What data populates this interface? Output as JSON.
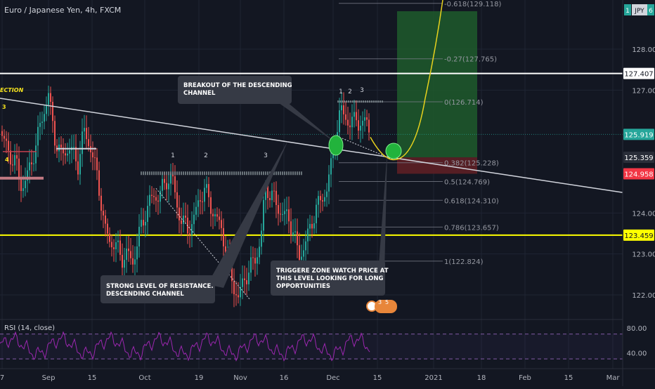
{
  "chart_data": {
    "type": "candlestick",
    "title": "Euro / Japanese Yen, 4h, FXCM",
    "currency_badge": "JPY",
    "top_right_badges": [
      "1",
      "6"
    ],
    "x_tick_labels": [
      "7",
      "Sep",
      "15",
      "Oct",
      "19",
      "Nov",
      "16",
      "Dec",
      "15",
      "2021",
      "18",
      "Feb",
      "15",
      "Mar"
    ],
    "price_axis": {
      "range": [
        121.4,
        129.2
      ],
      "ticks": [
        {
          "value": 128.0,
          "label": "128.000"
        },
        {
          "value": 127.0,
          "label": "127.000"
        },
        {
          "value": 124.0,
          "label": "124.000"
        },
        {
          "value": 123.0,
          "label": "123.000"
        },
        {
          "value": 122.0,
          "label": "122.000"
        }
      ],
      "price_tags": [
        {
          "value": 127.407,
          "label": "127.407",
          "style": "white"
        },
        {
          "value": 125.919,
          "label": "125.919",
          "style": "green"
        },
        {
          "value": 125.359,
          "label": "125.359",
          "style": "dark"
        },
        {
          "value": 124.958,
          "label": "124.958",
          "style": "red"
        },
        {
          "value": 123.459,
          "label": "123.459",
          "style": "yellow"
        }
      ]
    },
    "horizontal_levels": [
      {
        "value": 127.407,
        "color": "#ffffff"
      },
      {
        "value": 123.459,
        "color": "#ffff00"
      }
    ],
    "fibonacci": [
      {
        "value": 129.118,
        "label": "-0.618(129.118)"
      },
      {
        "value": 127.765,
        "label": "-0.27(127.765)"
      },
      {
        "value": 126.714,
        "label": "0(126.714)"
      },
      {
        "value": 125.228,
        "label": "0.382(125.228)"
      },
      {
        "value": 124.769,
        "label": "0.5(124.769)"
      },
      {
        "value": 124.31,
        "label": "0.618(124.310)"
      },
      {
        "value": 123.657,
        "label": "0.786(123.657)"
      },
      {
        "value": 122.824,
        "label": "1(122.824)"
      }
    ],
    "pattern_labels": [
      "1",
      "2",
      "3",
      "1",
      "2",
      "3"
    ],
    "left_edge_labels": [
      "ECTION",
      "3",
      "4"
    ],
    "annotations": [
      "BREAKOUT OF THE DESCENDING CHANNEL",
      "STRONG LEVEL OF RESISTANCE. DESCENDING CHANNEL",
      "TRIGGERE ZONE WATCH PRICE AT THIS LEVEL LOOKING FOR LONG OPPORTUNITIES"
    ],
    "event_badges": [
      "3",
      "5"
    ],
    "rsi": {
      "label": "RSI (14, close)",
      "range": [
        20,
        90
      ],
      "levels": [
        70,
        30
      ],
      "ticks": [
        {
          "value": 80,
          "label": "80.00"
        },
        {
          "value": 40,
          "label": "40.00"
        }
      ]
    },
    "colors": {
      "up": "#26a69a",
      "down": "#ef5350",
      "rsi": "#9c27b0",
      "target_zone": "#1e5a2b",
      "stop_zone": "#5d1f25",
      "projection": "#e8d21d"
    }
  }
}
